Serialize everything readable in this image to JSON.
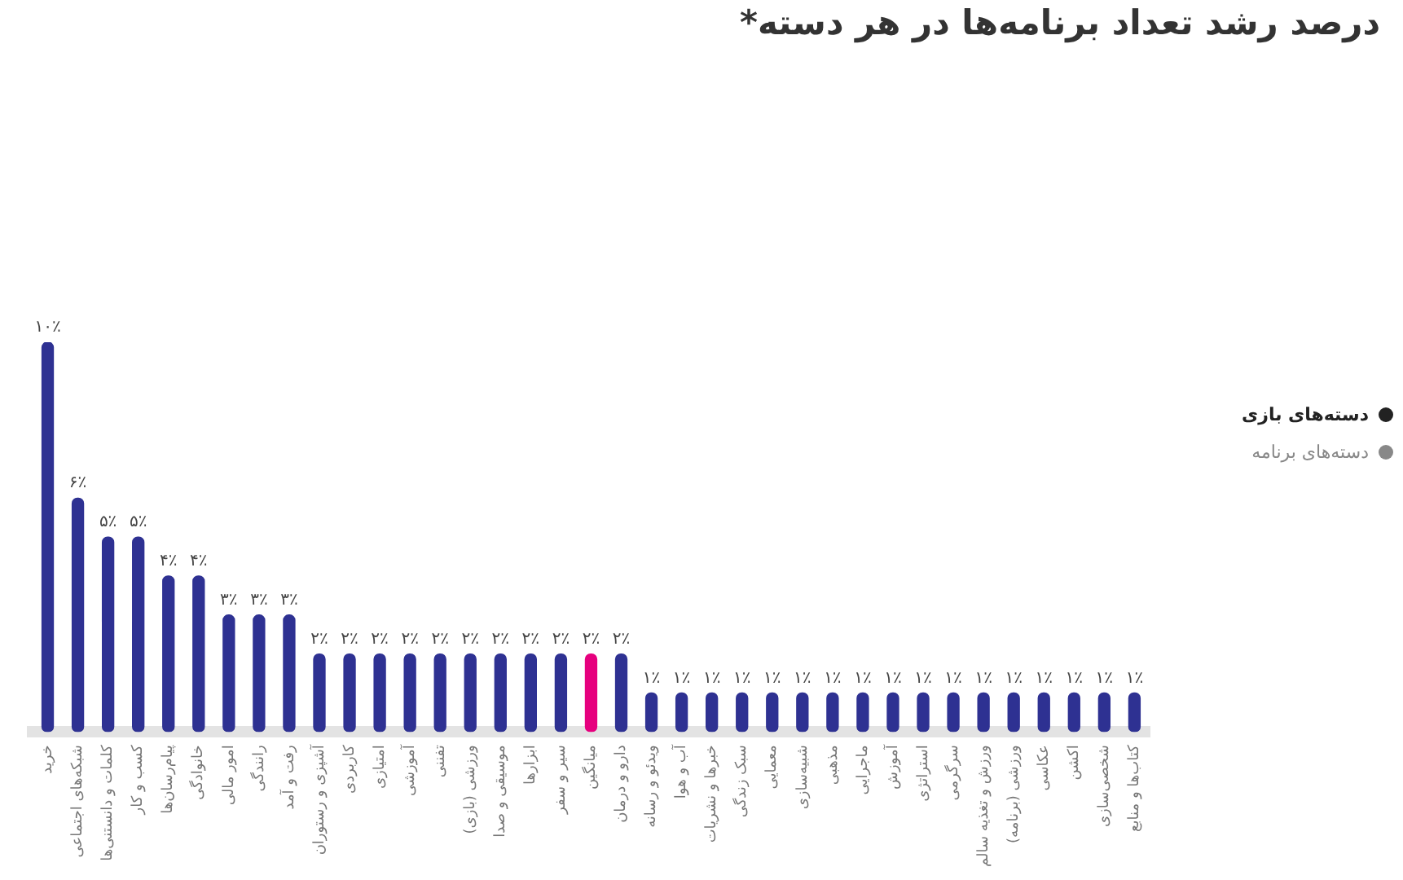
{
  "chart_data": {
    "type": "bar",
    "title": "درصد رشد تعداد برنامه‌ها در هر دسته*",
    "categories": [
      "خرید",
      "شبکه‌های اجتماعی",
      "کلمات و دانستنی‌ها",
      "کسب و کار",
      "پیام‌رسان‌ها",
      "خانوادگی",
      "امور مالی",
      "رانندگی",
      "رفت و آمد",
      "آشپزی و رستوران",
      "کاربردی",
      "امتیازی",
      "آموزشی",
      "تفننی",
      "ورزشی (بازی)",
      "موسیقی و صدا",
      "ابزارها",
      "سیر و سفر",
      "میانگین",
      "دارو و درمان",
      "ویدئو و رسانه",
      "آب و هوا",
      "خبرها و نشریات",
      "سبک زندگی",
      "معمایی",
      "شبیه‌سازی",
      "مذهبی",
      "ماجرایی",
      "آموزش",
      "استراتژی",
      "سرگرمی",
      "ورزش و تغذیه سالم",
      "ورزشی (برنامه)",
      "عکاسی",
      "اکشن",
      "شخصی‌سازی",
      "کتاب‌ها و منابع"
    ],
    "values": [
      10,
      6,
      5,
      5,
      4,
      4,
      3,
      3,
      3,
      2,
      2,
      2,
      2,
      2,
      2,
      2,
      2,
      2,
      2,
      2,
      1,
      1,
      1,
      1,
      1,
      1,
      1,
      1,
      1,
      1,
      1,
      1,
      1,
      1,
      1,
      1,
      1
    ],
    "value_labels": [
      "۱۰٪",
      "۶٪",
      "۵٪",
      "۵٪",
      "۴٪",
      "۴٪",
      "۳٪",
      "۳٪",
      "۳٪",
      "۲٪",
      "۲٪",
      "۲٪",
      "۲٪",
      "۲٪",
      "۲٪",
      "۲٪",
      "۲٪",
      "۲٪",
      "۲٪",
      "۲٪",
      "۱٪",
      "۱٪",
      "۱٪",
      "۱٪",
      "۱٪",
      "۱٪",
      "۱٪",
      "۱٪",
      "۱٪",
      "۱٪",
      "۱٪",
      "۱٪",
      "۱٪",
      "۱٪",
      "۱٪",
      "۱٪",
      "۱٪"
    ],
    "colors": [
      "#2e3192",
      "#2e3192",
      "#2e3192",
      "#2e3192",
      "#2e3192",
      "#2e3192",
      "#2e3192",
      "#2e3192",
      "#2e3192",
      "#2e3192",
      "#2e3192",
      "#2e3192",
      "#2e3192",
      "#2e3192",
      "#2e3192",
      "#2e3192",
      "#2e3192",
      "#2e3192",
      "#e6007e",
      "#2e3192",
      "#2e3192",
      "#2e3192",
      "#2e3192",
      "#2e3192",
      "#2e3192",
      "#2e3192",
      "#2e3192",
      "#2e3192",
      "#2e3192",
      "#2e3192",
      "#2e3192",
      "#2e3192",
      "#2e3192",
      "#2e3192",
      "#2e3192",
      "#2e3192",
      "#2e3192"
    ],
    "annotations": [
      "دسته‌های بازی",
      "دسته‌های برنامه"
    ],
    "grid": false,
    "legend": false
  }
}
